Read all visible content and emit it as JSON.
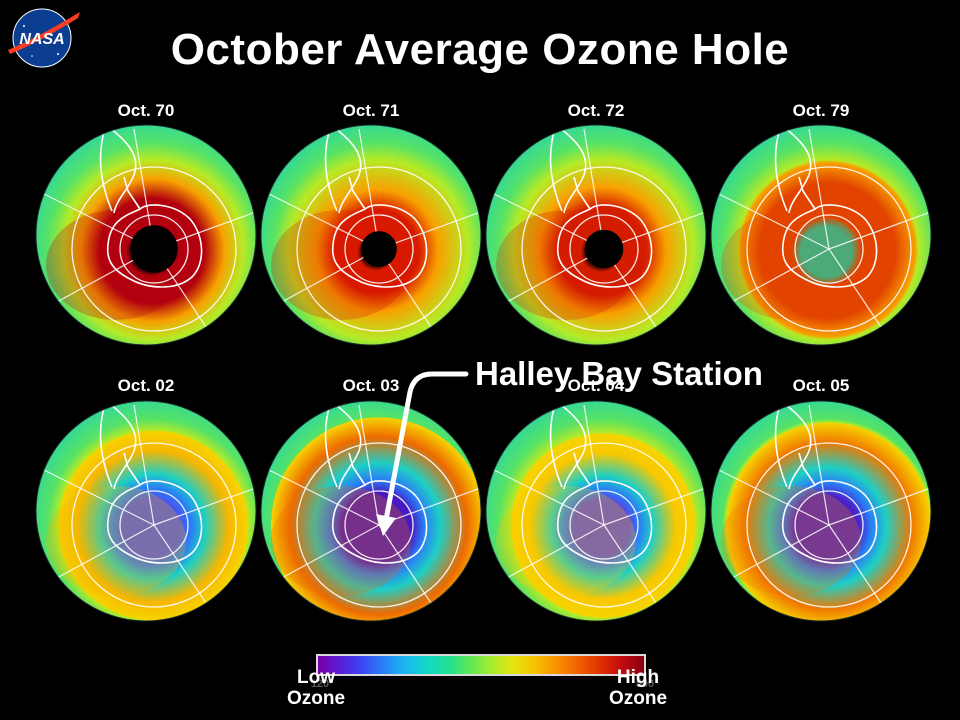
{
  "logo": {
    "text": "NASA",
    "icon": "nasa-meatball-icon"
  },
  "title": "October Average Ozone Hole",
  "maps": [
    {
      "label": "Oct. 70",
      "hole_color": "#000000",
      "hole_size": 0.16,
      "ring_color": "#b2000e",
      "depletion": 0.0
    },
    {
      "label": "Oct. 71",
      "hole_color": "#000000",
      "hole_size": 0.12,
      "ring_color": "#d81a00",
      "depletion": 0.0
    },
    {
      "label": "Oct. 72",
      "hole_color": "#000000",
      "hole_size": 0.13,
      "ring_color": "#d41c00",
      "depletion": 0.0
    },
    {
      "label": "Oct. 79",
      "hole_color": "#11d1a6",
      "hole_size": 0.22,
      "ring_color": "#e24400",
      "depletion": 0.25
    },
    {
      "label": "Oct. 02",
      "hole_color": "#4a52ee",
      "hole_size": 0.25,
      "ring_color": "#f6b600",
      "depletion": 0.6
    },
    {
      "label": "Oct. 03",
      "hole_color": "#4818c0",
      "hole_size": 0.3,
      "ring_color": "#ee6a00",
      "depletion": 0.9
    },
    {
      "label": "Oct. 04",
      "hole_color": "#5a44e0",
      "hole_size": 0.24,
      "ring_color": "#f8c800",
      "depletion": 0.7
    },
    {
      "label": "Oct. 05",
      "hole_color": "#4a22c8",
      "hole_size": 0.28,
      "ring_color": "#f07800",
      "depletion": 0.85
    }
  ],
  "annotation": {
    "label": "Halley Bay Station",
    "target_map": "Oct. 03"
  },
  "colorbar": {
    "low_label_line1": "Low",
    "low_label_line2": "Ozone",
    "high_label_line1": "High",
    "high_label_line2": "Ozone",
    "min_tick": "120",
    "max_tick": "500",
    "colors": [
      "#7a00a8",
      "#5a1cd8",
      "#3c46f2",
      "#2a80f8",
      "#1ab6f0",
      "#12d8c8",
      "#20e090",
      "#5ee858",
      "#a8ec2c",
      "#e6e410",
      "#f8c000",
      "#f89000",
      "#f06000",
      "#e03000",
      "#c00a10",
      "#8a0010"
    ]
  },
  "colors": {
    "background": "#000000",
    "ocean_base": "#2fe094",
    "outer_ring": "#8de838",
    "text": "#ffffff"
  }
}
